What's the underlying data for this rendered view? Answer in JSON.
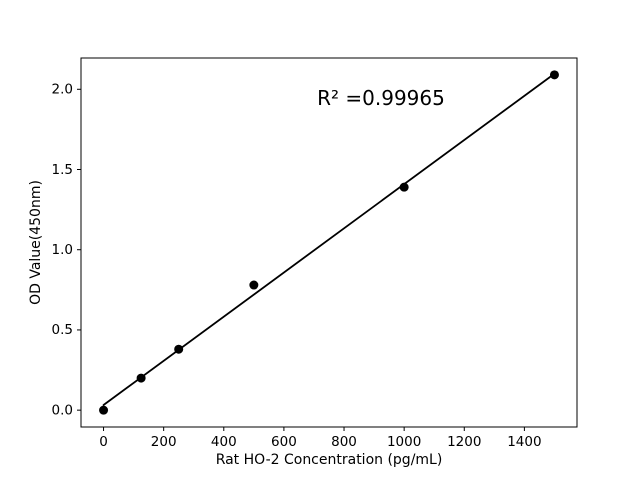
{
  "figure": {
    "background": "#ffffff"
  },
  "chart_data": {
    "type": "scatter",
    "title": "",
    "xlabel": "Rat HO-2 Concentration (pg/mL)",
    "ylabel": "OD Value(450nm)",
    "annotation": "R² =0.99965",
    "points": [
      {
        "x": 0,
        "y": 0.0
      },
      {
        "x": 125,
        "y": 0.2
      },
      {
        "x": 250,
        "y": 0.38
      },
      {
        "x": 500,
        "y": 0.78
      },
      {
        "x": 1000,
        "y": 1.39
      },
      {
        "x": 1500,
        "y": 2.09
      }
    ],
    "trendline": {
      "x1": 0,
      "y1": 0.032,
      "x2": 1500,
      "y2": 2.097,
      "r_squared": 0.99965
    },
    "xlim": [
      -75,
      1575
    ],
    "ylim": [
      -0.105,
      2.195
    ],
    "xtick_values": [
      0,
      200,
      400,
      600,
      800,
      1000,
      1200,
      1400
    ],
    "xtick_labels": [
      "0",
      "200",
      "400",
      "600",
      "800",
      "1000",
      "1200",
      "1400"
    ],
    "ytick_values": [
      0,
      0.5,
      1.0,
      1.5,
      2.0
    ],
    "ytick_labels": [
      "0.0",
      "0.5",
      "1.0",
      "1.5",
      "2.0"
    ],
    "grid": false,
    "legend_position": "none",
    "marker_color": "#000000",
    "line_color": "#000000",
    "axis_color": "#000000"
  }
}
